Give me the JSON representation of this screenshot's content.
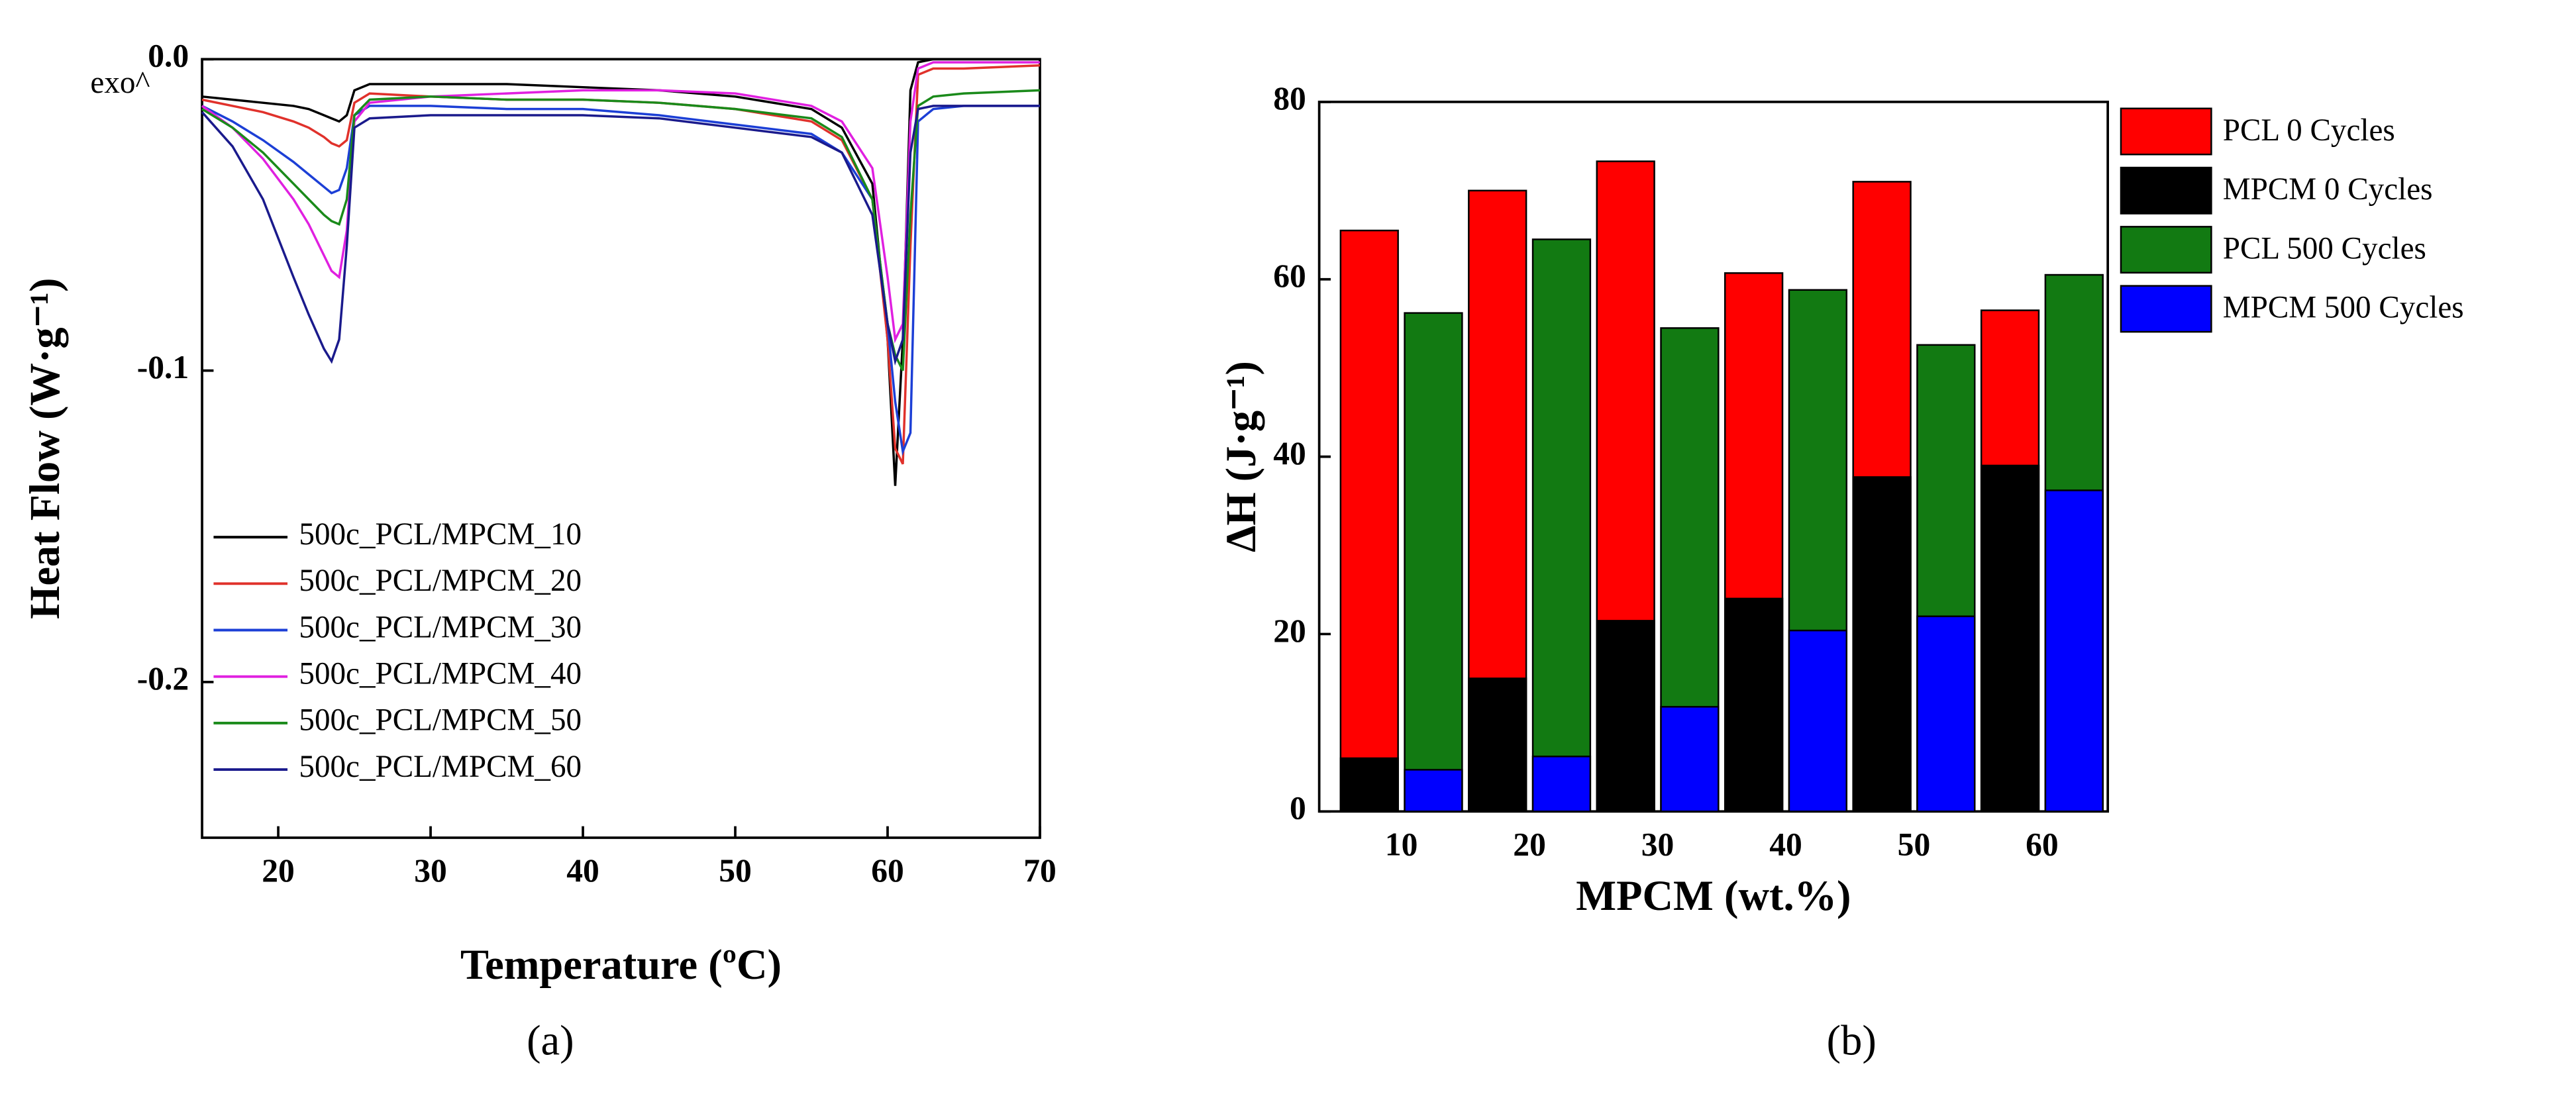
{
  "chart_data": [
    {
      "type": "line",
      "panel_label": "(a)",
      "annotation": "exo^",
      "xlabel": "Temperature (ºC)",
      "ylabel": "Heat Flow (W·g⁻¹)",
      "xlim": [
        15,
        70
      ],
      "ylim": [
        -0.25,
        0
      ],
      "xticks": [
        20,
        30,
        40,
        50,
        60,
        70
      ],
      "yticks": [
        {
          "value": 0,
          "label": "0.0"
        },
        -0.1,
        -0.2
      ],
      "legend": "lower left",
      "x": [
        15,
        17,
        19,
        21,
        22,
        23,
        23.5,
        24,
        24.5,
        25,
        26,
        30,
        35,
        40,
        45,
        50,
        55,
        57,
        59,
        60,
        60.5,
        61,
        61.5,
        62,
        63,
        65,
        70
      ],
      "series": [
        {
          "name": "500c_PCL/MPCM_10",
          "color": "#000000",
          "values": [
            -0.012,
            -0.013,
            -0.014,
            -0.015,
            -0.016,
            -0.018,
            -0.019,
            -0.02,
            -0.018,
            -0.01,
            -0.008,
            -0.008,
            -0.008,
            -0.009,
            -0.01,
            -0.012,
            -0.016,
            -0.022,
            -0.04,
            -0.09,
            -0.137,
            -0.09,
            -0.01,
            -0.001,
            0,
            0,
            0
          ]
        },
        {
          "name": "500c_PCL/MPCM_20",
          "color": "#e0312b",
          "values": [
            -0.013,
            -0.015,
            -0.017,
            -0.02,
            -0.022,
            -0.025,
            -0.027,
            -0.028,
            -0.026,
            -0.014,
            -0.011,
            -0.012,
            -0.013,
            -0.013,
            -0.014,
            -0.016,
            -0.02,
            -0.026,
            -0.045,
            -0.09,
            -0.125,
            -0.13,
            -0.06,
            -0.005,
            -0.003,
            -0.003,
            -0.002
          ]
        },
        {
          "name": "500c_PCL/MPCM_30",
          "color": "#1c3fd6",
          "values": [
            -0.015,
            -0.02,
            -0.026,
            -0.033,
            -0.037,
            -0.041,
            -0.043,
            -0.042,
            -0.035,
            -0.018,
            -0.015,
            -0.015,
            -0.016,
            -0.016,
            -0.018,
            -0.021,
            -0.024,
            -0.03,
            -0.045,
            -0.085,
            -0.11,
            -0.126,
            -0.12,
            -0.02,
            -0.016,
            -0.015,
            -0.015
          ]
        },
        {
          "name": "500c_PCL/MPCM_40",
          "color": "#e020e0",
          "values": [
            -0.015,
            -0.022,
            -0.032,
            -0.045,
            -0.053,
            -0.063,
            -0.068,
            -0.07,
            -0.055,
            -0.02,
            -0.014,
            -0.012,
            -0.011,
            -0.01,
            -0.01,
            -0.011,
            -0.015,
            -0.02,
            -0.035,
            -0.07,
            -0.09,
            -0.085,
            -0.02,
            -0.003,
            -0.001,
            -0.001,
            -0.001
          ]
        },
        {
          "name": "500c_PCL/MPCM_50",
          "color": "#1a8a1a",
          "values": [
            -0.016,
            -0.022,
            -0.03,
            -0.04,
            -0.045,
            -0.05,
            -0.052,
            -0.053,
            -0.045,
            -0.018,
            -0.013,
            -0.012,
            -0.013,
            -0.013,
            -0.014,
            -0.016,
            -0.019,
            -0.025,
            -0.045,
            -0.085,
            -0.095,
            -0.1,
            -0.05,
            -0.015,
            -0.012,
            -0.011,
            -0.01
          ]
        },
        {
          "name": "500c_PCL/MPCM_60",
          "color": "#1a1a8c",
          "values": [
            -0.017,
            -0.028,
            -0.045,
            -0.07,
            -0.082,
            -0.093,
            -0.097,
            -0.09,
            -0.06,
            -0.022,
            -0.019,
            -0.018,
            -0.018,
            -0.018,
            -0.019,
            -0.022,
            -0.025,
            -0.03,
            -0.05,
            -0.085,
            -0.097,
            -0.09,
            -0.03,
            -0.016,
            -0.015,
            -0.015,
            -0.015
          ]
        }
      ]
    },
    {
      "type": "bar",
      "panel_label": "(b)",
      "xlabel": "MPCM (wt.%)",
      "ylabel": "ΔH (J·g⁻¹)",
      "ylim": [
        0,
        80
      ],
      "yticks": [
        0,
        20,
        40,
        60,
        80
      ],
      "legend": "upper right outside",
      "categories": [
        "10",
        "20",
        "30",
        "40",
        "50",
        "60"
      ],
      "series": [
        {
          "name": "PCL 0 Cycles",
          "color": "#ff0000",
          "values": [
            65.5,
            70,
            73.3,
            60.7,
            71,
            56.5
          ]
        },
        {
          "name": "MPCM 0 Cycles",
          "color": "#000000",
          "values": [
            6,
            15,
            21.5,
            24,
            37.7,
            39
          ]
        },
        {
          "name": "PCL 500 Cycles",
          "color": "#127a12",
          "values": [
            56.2,
            64.5,
            54.5,
            58.8,
            52.6,
            60.5
          ]
        },
        {
          "name": "MPCM 500 Cycles",
          "color": "#0000ff",
          "values": [
            4.7,
            6.2,
            11.8,
            20.4,
            22,
            36.2
          ]
        }
      ]
    }
  ]
}
